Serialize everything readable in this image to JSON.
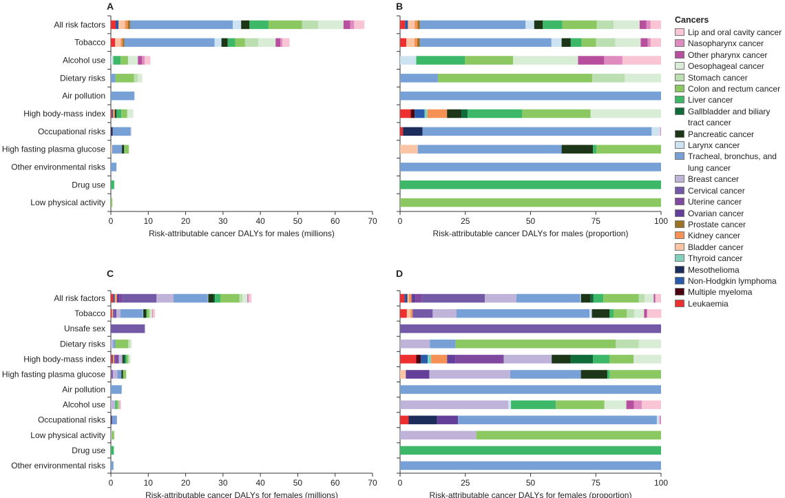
{
  "legend_title": "Cancers",
  "cancers": [
    {
      "key": "lip",
      "label": "Lip and oral cavity cancer",
      "color": "#f9c4d4"
    },
    {
      "key": "naso",
      "label": "Nasopharynx cancer",
      "color": "#e08bbf"
    },
    {
      "key": "pharynx",
      "label": "Other pharynx cancer",
      "color": "#b84f9e"
    },
    {
      "key": "oesoph",
      "label": "Oesophageal cancer",
      "color": "#d9ecd6"
    },
    {
      "key": "stomach",
      "label": "Stomach cancer",
      "color": "#bcdfb2"
    },
    {
      "key": "colon",
      "label": "Colon and rectum cancer",
      "color": "#8bc862"
    },
    {
      "key": "liver",
      "label": "Liver cancer",
      "color": "#3cb868"
    },
    {
      "key": "gall",
      "label": "Gallbladder and biliary tract cancer",
      "color": "#0f6b3a"
    },
    {
      "key": "pancreas",
      "label": "Pancreatic cancer",
      "color": "#1c3617"
    },
    {
      "key": "larynx",
      "label": "Larynx cancer",
      "color": "#cde3f1"
    },
    {
      "key": "lung",
      "label": "Tracheal, bronchus, and lung cancer",
      "color": "#77a1d6"
    },
    {
      "key": "breast",
      "label": "Breast cancer",
      "color": "#bfb3d9"
    },
    {
      "key": "cervical",
      "label": "Cervical cancer",
      "color": "#7459a6"
    },
    {
      "key": "uterine",
      "label": "Uterine cancer",
      "color": "#8049a0"
    },
    {
      "key": "ovarian",
      "label": "Ovarian cancer",
      "color": "#643f9a"
    },
    {
      "key": "prostate",
      "label": "Prostate cancer",
      "color": "#9b7124"
    },
    {
      "key": "kidney",
      "label": "Kidney cancer",
      "color": "#f69155"
    },
    {
      "key": "bladder",
      "label": "Bladder cancer",
      "color": "#fbc4a4"
    },
    {
      "key": "thyroid",
      "label": "Thyroid cancer",
      "color": "#80d0bc"
    },
    {
      "key": "meso",
      "label": "Mesothelioma",
      "color": "#1c2d5b"
    },
    {
      "key": "nhl",
      "label": "Non-Hodgkin lymphoma",
      "color": "#2a5aab"
    },
    {
      "key": "myeloma",
      "label": "Multiple myeloma",
      "color": "#4a0010"
    },
    {
      "key": "leuk",
      "label": "Leukaemia",
      "color": "#ee2f2f"
    }
  ],
  "chart_data": [
    {
      "type": "bar",
      "stacked": true,
      "orientation": "horizontal",
      "panel": "A",
      "sex": "males",
      "measure": "absolute",
      "xlabel": "Risk-attributable cancer DALYs for males (millions)",
      "xlim": [
        0,
        70
      ],
      "xticks": [
        0,
        10,
        20,
        30,
        40,
        50,
        60,
        70
      ]
    },
    {
      "type": "bar",
      "stacked": true,
      "orientation": "horizontal",
      "panel": "B",
      "sex": "males",
      "measure": "proportion",
      "xlabel": "Risk-attributable cancer DALYs for males (proportion)",
      "xlim": [
        0,
        100
      ],
      "xticks": [
        0,
        25,
        50,
        75,
        100
      ]
    },
    {
      "type": "bar",
      "stacked": true,
      "orientation": "horizontal",
      "panel": "C",
      "sex": "females",
      "measure": "absolute",
      "xlabel": "Risk-attributable cancer DALYs for females (millions)",
      "xlim": [
        0,
        70
      ],
      "xticks": [
        0,
        10,
        20,
        30,
        40,
        50,
        60,
        70
      ]
    },
    {
      "type": "bar",
      "stacked": true,
      "orientation": "horizontal",
      "panel": "D",
      "sex": "females",
      "measure": "proportion",
      "xlabel": "Risk-attributable cancer DALYs for females (proportion)",
      "xlim": [
        0,
        100
      ],
      "xticks": [
        0,
        25,
        50,
        75,
        100
      ]
    }
  ],
  "males": [
    {
      "risk": "All risk factors",
      "total_millions": 67.8,
      "percent": {
        "leuk": 1.9,
        "nhl": 0.9,
        "meso": 0.2,
        "bladder": 2.6,
        "kidney": 1.1,
        "prostate": 0.9,
        "lung": 40.5,
        "larynx": 3.3,
        "pancreas": 3.3,
        "liver": 7.5,
        "colon": 13.2,
        "stomach": 6.4,
        "oesoph": 10.0,
        "pharynx": 2.6,
        "naso": 1.6,
        "lip": 4.0
      }
    },
    {
      "risk": "Tobacco",
      "total_millions": 47.8,
      "percent": {
        "leuk": 2.4,
        "bladder": 3.1,
        "kidney": 1.1,
        "prostate": 1.0,
        "lung": 50.4,
        "larynx": 3.9,
        "pancreas": 3.5,
        "liver": 4.2,
        "colon": 5.5,
        "stomach": 7.4,
        "oesoph": 9.7,
        "pharynx": 2.7,
        "naso": 1.1,
        "lip": 4.0
      }
    },
    {
      "risk": "Alcohol use",
      "total_millions": 10.6,
      "percent": {
        "larynx": 6.2,
        "liver": 18.6,
        "colon": 18.5,
        "oesoph": 24.9,
        "pharynx": 10.0,
        "naso": 7.0,
        "lip": 14.8
      }
    },
    {
      "risk": "Dietary risks",
      "total_millions": 8.4,
      "percent": {
        "lung": 14.5,
        "colon": 59.1,
        "stomach": 12.5,
        "oesoph": 13.9
      }
    },
    {
      "risk": "Air pollution",
      "total_millions": 6.3,
      "percent": {
        "lung": 100
      }
    },
    {
      "risk": "High body-mass index",
      "total_millions": 6.0,
      "percent": {
        "leuk": 4.1,
        "myeloma": 1.5,
        "nhl": 3.8,
        "thyroid": 1.1,
        "kidney": 7.5,
        "pancreas": 5.5,
        "gall": 2.4,
        "liver": 20.9,
        "colon": 26.2,
        "oesoph": 27.0
      }
    },
    {
      "risk": "Occupational risks",
      "total_millions": 5.5,
      "percent": {
        "leuk": 1.1,
        "meso": 7.5,
        "lung": 87.8,
        "larynx": 3.3,
        "naso": 0.3
      }
    },
    {
      "risk": "High fasting plasma glucose",
      "total_millions": 4.8,
      "percent": {
        "bladder": 6.8,
        "lung": 55.1,
        "pancreas": 12.0,
        "liver": 1.3,
        "colon": 24.8
      }
    },
    {
      "risk": "Other environmental risks",
      "total_millions": 1.5,
      "percent": {
        "lung": 100
      }
    },
    {
      "risk": "Drug use",
      "total_millions": 0.9,
      "percent": {
        "liver": 100
      }
    },
    {
      "risk": "Low physical activity",
      "total_millions": 0.4,
      "percent": {
        "colon": 100
      }
    }
  ],
  "females": [
    {
      "risk": "All risk factors",
      "total_millions": 37.6,
      "percent": {
        "leuk": 1.7,
        "meso": 0.4,
        "nhl": 0.7,
        "bladder": 0.6,
        "kidney": 1.0,
        "ovarian": 1.5,
        "uterine": 2.5,
        "cervical": 24.1,
        "breast": 12.1,
        "lung": 24.4,
        "larynx": 0.3,
        "pancreas": 3.7,
        "gall": 1.1,
        "liver": 3.8,
        "colon": 13.6,
        "stomach": 2.2,
        "oesoph": 3.5,
        "pharynx": 0.6,
        "lip": 2.2
      }
    },
    {
      "risk": "Tobacco",
      "total_millions": 11.8,
      "percent": {
        "leuk": 2.6,
        "bladder": 1.4,
        "kidney": 0.8,
        "cervical": 7.7,
        "breast": 9.1,
        "lung": 51.0,
        "larynx": 0.9,
        "pancreas": 6.8,
        "liver": 1.5,
        "colon": 5.1,
        "stomach": 2.8,
        "oesoph": 3.8,
        "pharynx": 1.1,
        "lip": 5.5
      }
    },
    {
      "risk": "Unsafe sex",
      "total_millions": 9.1,
      "percent": {
        "cervical": 100
      }
    },
    {
      "risk": "Dietary risks",
      "total_millions": 5.6,
      "percent": {
        "breast": 11.4,
        "lung": 9.9,
        "colon": 61.3,
        "stomach": 8.9,
        "oesoph": 8.5
      }
    },
    {
      "risk": "High body-mass index",
      "total_millions": 5.3,
      "percent": {
        "leuk": 6.2,
        "myeloma": 1.7,
        "nhl": 2.7,
        "thyroid": 1.3,
        "kidney": 6.1,
        "ovarian": 3.2,
        "uterine": 18.5,
        "breast": 18.4,
        "pancreas": 7.3,
        "gall": 8.5,
        "liver": 6.4,
        "colon": 9.2,
        "oesoph": 10.6
      }
    },
    {
      "risk": "High fasting plasma glucose",
      "total_millions": 4.1,
      "percent": {
        "bladder": 2.2,
        "ovarian": 9.0,
        "breast": 31.0,
        "lung": 27.1,
        "pancreas": 10.1,
        "liver": 1.0,
        "colon": 19.6
      }
    },
    {
      "risk": "Air pollution",
      "total_millions": 2.9,
      "percent": {
        "lung": 100
      }
    },
    {
      "risk": "Alcohol use",
      "total_millions": 2.7,
      "percent": {
        "breast": 41.5,
        "larynx": 1.0,
        "liver": 17.2,
        "colon": 18.6,
        "oesoph": 8.4,
        "pharynx": 2.9,
        "naso": 3.0,
        "lip": 7.4
      }
    },
    {
      "risk": "Occupational risks",
      "total_millions": 1.6,
      "percent": {
        "leuk": 3.3,
        "meso": 10.8,
        "ovarian": 8.1,
        "lung": 76.2,
        "larynx": 1.0,
        "naso": 0.6
      }
    },
    {
      "risk": "Low physical activity",
      "total_millions": 0.9,
      "percent": {
        "breast": 29.2,
        "colon": 70.8
      }
    },
    {
      "risk": "Drug use",
      "total_millions": 0.8,
      "percent": {
        "liver": 100
      }
    },
    {
      "risk": "Other environmental risks",
      "total_millions": 0.7,
      "percent": {
        "lung": 100
      }
    }
  ]
}
